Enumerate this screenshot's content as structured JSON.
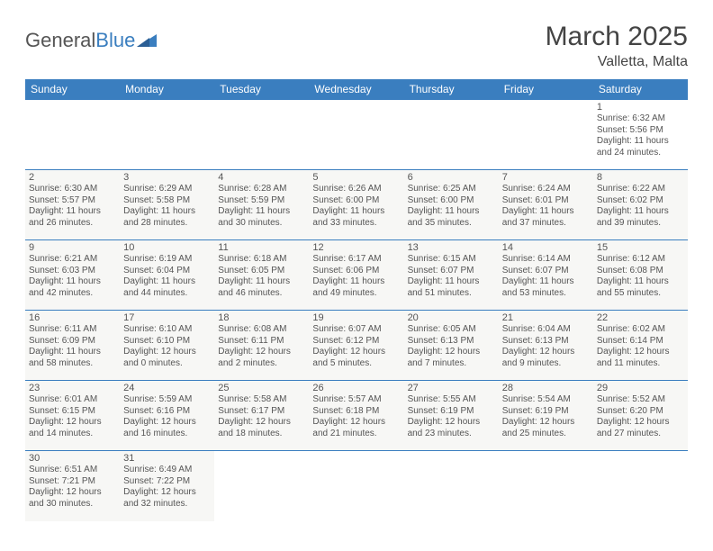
{
  "brand": {
    "part1": "General",
    "part2": "Blue"
  },
  "title": "March 2025",
  "location": "Valletta, Malta",
  "colors": {
    "accent": "#3a7ebf",
    "text": "#555555",
    "cellbg": "#f7f7f5"
  },
  "weekdays": [
    "Sunday",
    "Monday",
    "Tuesday",
    "Wednesday",
    "Thursday",
    "Friday",
    "Saturday"
  ],
  "grid": {
    "first_weekday_index": 6,
    "rows": 6,
    "cols": 7
  },
  "days": [
    {
      "n": 1,
      "sunrise": "6:32 AM",
      "sunset": "5:56 PM",
      "day_h": 11,
      "day_m": 24
    },
    {
      "n": 2,
      "sunrise": "6:30 AM",
      "sunset": "5:57 PM",
      "day_h": 11,
      "day_m": 26
    },
    {
      "n": 3,
      "sunrise": "6:29 AM",
      "sunset": "5:58 PM",
      "day_h": 11,
      "day_m": 28
    },
    {
      "n": 4,
      "sunrise": "6:28 AM",
      "sunset": "5:59 PM",
      "day_h": 11,
      "day_m": 30
    },
    {
      "n": 5,
      "sunrise": "6:26 AM",
      "sunset": "6:00 PM",
      "day_h": 11,
      "day_m": 33
    },
    {
      "n": 6,
      "sunrise": "6:25 AM",
      "sunset": "6:00 PM",
      "day_h": 11,
      "day_m": 35
    },
    {
      "n": 7,
      "sunrise": "6:24 AM",
      "sunset": "6:01 PM",
      "day_h": 11,
      "day_m": 37
    },
    {
      "n": 8,
      "sunrise": "6:22 AM",
      "sunset": "6:02 PM",
      "day_h": 11,
      "day_m": 39
    },
    {
      "n": 9,
      "sunrise": "6:21 AM",
      "sunset": "6:03 PM",
      "day_h": 11,
      "day_m": 42
    },
    {
      "n": 10,
      "sunrise": "6:19 AM",
      "sunset": "6:04 PM",
      "day_h": 11,
      "day_m": 44
    },
    {
      "n": 11,
      "sunrise": "6:18 AM",
      "sunset": "6:05 PM",
      "day_h": 11,
      "day_m": 46
    },
    {
      "n": 12,
      "sunrise": "6:17 AM",
      "sunset": "6:06 PM",
      "day_h": 11,
      "day_m": 49
    },
    {
      "n": 13,
      "sunrise": "6:15 AM",
      "sunset": "6:07 PM",
      "day_h": 11,
      "day_m": 51
    },
    {
      "n": 14,
      "sunrise": "6:14 AM",
      "sunset": "6:07 PM",
      "day_h": 11,
      "day_m": 53
    },
    {
      "n": 15,
      "sunrise": "6:12 AM",
      "sunset": "6:08 PM",
      "day_h": 11,
      "day_m": 55
    },
    {
      "n": 16,
      "sunrise": "6:11 AM",
      "sunset": "6:09 PM",
      "day_h": 11,
      "day_m": 58
    },
    {
      "n": 17,
      "sunrise": "6:10 AM",
      "sunset": "6:10 PM",
      "day_h": 12,
      "day_m": 0
    },
    {
      "n": 18,
      "sunrise": "6:08 AM",
      "sunset": "6:11 PM",
      "day_h": 12,
      "day_m": 2
    },
    {
      "n": 19,
      "sunrise": "6:07 AM",
      "sunset": "6:12 PM",
      "day_h": 12,
      "day_m": 5
    },
    {
      "n": 20,
      "sunrise": "6:05 AM",
      "sunset": "6:13 PM",
      "day_h": 12,
      "day_m": 7
    },
    {
      "n": 21,
      "sunrise": "6:04 AM",
      "sunset": "6:13 PM",
      "day_h": 12,
      "day_m": 9
    },
    {
      "n": 22,
      "sunrise": "6:02 AM",
      "sunset": "6:14 PM",
      "day_h": 12,
      "day_m": 11
    },
    {
      "n": 23,
      "sunrise": "6:01 AM",
      "sunset": "6:15 PM",
      "day_h": 12,
      "day_m": 14
    },
    {
      "n": 24,
      "sunrise": "5:59 AM",
      "sunset": "6:16 PM",
      "day_h": 12,
      "day_m": 16
    },
    {
      "n": 25,
      "sunrise": "5:58 AM",
      "sunset": "6:17 PM",
      "day_h": 12,
      "day_m": 18
    },
    {
      "n": 26,
      "sunrise": "5:57 AM",
      "sunset": "6:18 PM",
      "day_h": 12,
      "day_m": 21
    },
    {
      "n": 27,
      "sunrise": "5:55 AM",
      "sunset": "6:19 PM",
      "day_h": 12,
      "day_m": 23
    },
    {
      "n": 28,
      "sunrise": "5:54 AM",
      "sunset": "6:19 PM",
      "day_h": 12,
      "day_m": 25
    },
    {
      "n": 29,
      "sunrise": "5:52 AM",
      "sunset": "6:20 PM",
      "day_h": 12,
      "day_m": 27
    },
    {
      "n": 30,
      "sunrise": "6:51 AM",
      "sunset": "7:21 PM",
      "day_h": 12,
      "day_m": 30
    },
    {
      "n": 31,
      "sunrise": "6:49 AM",
      "sunset": "7:22 PM",
      "day_h": 12,
      "day_m": 32
    }
  ],
  "labels": {
    "sunrise": "Sunrise:",
    "sunset": "Sunset:",
    "daylight": "Daylight:",
    "hours": "hours",
    "and": "and",
    "minutes": "minutes."
  }
}
